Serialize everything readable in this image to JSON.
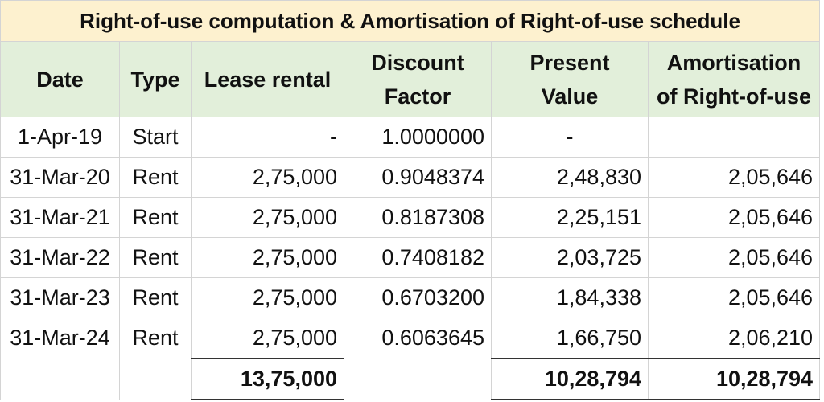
{
  "title": "Right-of-use  computation & Amortisation of Right-of-use schedule",
  "headers": [
    "Date",
    "Type",
    "Lease rental",
    "Discount Factor",
    "Present Value",
    "Amortisation of Right-of-use"
  ],
  "header_lines": [
    [
      "Date"
    ],
    [
      "Type"
    ],
    [
      "Lease rental"
    ],
    [
      "Discount",
      "Factor"
    ],
    [
      "Present",
      "Value"
    ],
    [
      "Amortisation",
      "of Right-of-use"
    ]
  ],
  "rows": [
    {
      "date": "1-Apr-19",
      "type": "Start",
      "lease_rental": "-",
      "discount_factor": "1.0000000",
      "present_value": "-",
      "amortisation": ""
    },
    {
      "date": "31-Mar-20",
      "type": "Rent",
      "lease_rental": "2,75,000",
      "discount_factor": "0.9048374",
      "present_value": "2,48,830",
      "amortisation": "2,05,646"
    },
    {
      "date": "31-Mar-21",
      "type": "Rent",
      "lease_rental": "2,75,000",
      "discount_factor": "0.8187308",
      "present_value": "2,25,151",
      "amortisation": "2,05,646"
    },
    {
      "date": "31-Mar-22",
      "type": "Rent",
      "lease_rental": "2,75,000",
      "discount_factor": "0.7408182",
      "present_value": "2,03,725",
      "amortisation": "2,05,646"
    },
    {
      "date": "31-Mar-23",
      "type": "Rent",
      "lease_rental": "2,75,000",
      "discount_factor": "0.6703200",
      "present_value": "1,84,338",
      "amortisation": "2,05,646"
    },
    {
      "date": "31-Mar-24",
      "type": "Rent",
      "lease_rental": "2,75,000",
      "discount_factor": "0.6063645",
      "present_value": "1,66,750",
      "amortisation": "2,06,210"
    }
  ],
  "totals": {
    "lease_rental": "13,75,000",
    "present_value": "10,28,794",
    "amortisation": "10,28,794"
  },
  "colors": {
    "title_bg": "#fdf1cf",
    "header_bg": "#e2efda"
  }
}
